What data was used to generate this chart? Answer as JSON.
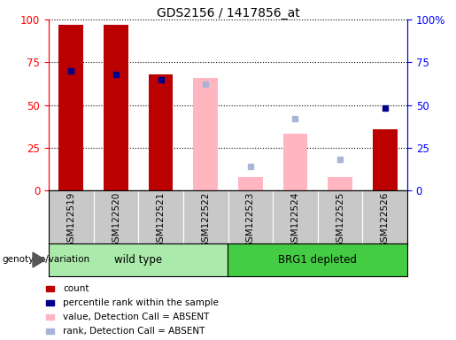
{
  "title": "GDS2156 / 1417856_at",
  "samples": [
    "GSM122519",
    "GSM122520",
    "GSM122521",
    "GSM122522",
    "GSM122523",
    "GSM122524",
    "GSM122525",
    "GSM122526"
  ],
  "count_values": [
    97,
    97,
    68,
    null,
    null,
    null,
    null,
    36
  ],
  "rank_values": [
    70,
    68,
    65,
    null,
    null,
    null,
    null,
    48
  ],
  "absent_value_values": [
    null,
    null,
    null,
    66,
    8,
    33,
    8,
    null
  ],
  "absent_rank_values": [
    null,
    null,
    null,
    62,
    14,
    42,
    18,
    null
  ],
  "ylim": [
    0,
    100
  ],
  "yticks": [
    0,
    25,
    50,
    75,
    100
  ],
  "ytick_labels_left": [
    "0",
    "25",
    "50",
    "75",
    "100"
  ],
  "ytick_labels_right": [
    "0",
    "25",
    "50",
    "75",
    "100%"
  ],
  "count_color": "#bb0000",
  "rank_color": "#00008b",
  "absent_value_color": "#ffb6c1",
  "absent_rank_color": "#aab4d8",
  "tick_area_color": "#c8c8c8",
  "wt_color": "#aaeaaa",
  "brg_color": "#44cc44",
  "legend_items": [
    {
      "label": "count",
      "color": "#bb0000"
    },
    {
      "label": "percentile rank within the sample",
      "color": "#00008b"
    },
    {
      "label": "value, Detection Call = ABSENT",
      "color": "#ffb6c1"
    },
    {
      "label": "rank, Detection Call = ABSENT",
      "color": "#aab4d8"
    }
  ],
  "figsize": [
    5.15,
    3.84
  ],
  "dpi": 100
}
